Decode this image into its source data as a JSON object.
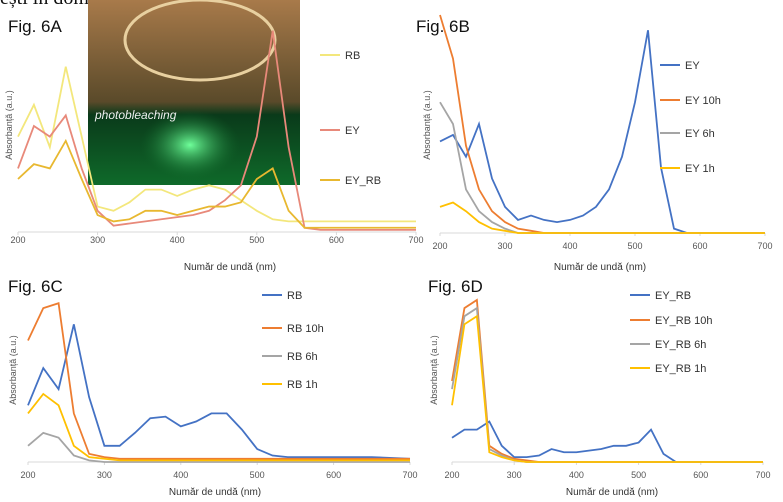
{
  "header": "ești în domeniul vizibil.",
  "chart_data": [
    {
      "type": "line",
      "title": "Fig. 6A",
      "annotation": "photobleaching",
      "x_label": "Număr de undă (nm)",
      "y_label": "Absorbanță (a.u.)",
      "x": [
        200,
        220,
        240,
        260,
        280,
        300,
        320,
        340,
        360,
        380,
        400,
        420,
        440,
        460,
        480,
        500,
        520,
        540,
        560,
        580,
        600,
        650,
        700
      ],
      "xlim": [
        200,
        700
      ],
      "xticks": [
        200,
        300,
        400,
        500,
        600,
        700
      ],
      "ylim": [
        0,
        1
      ],
      "series": [
        {
          "name": "RB",
          "color": "#f3e77c",
          "values": [
            0.45,
            0.6,
            0.4,
            0.78,
            0.45,
            0.12,
            0.1,
            0.14,
            0.2,
            0.2,
            0.17,
            0.2,
            0.22,
            0.2,
            0.15,
            0.1,
            0.06,
            0.05,
            0.05,
            0.05,
            0.05,
            0.05,
            0.05
          ]
        },
        {
          "name": "EY",
          "color": "#e8897a",
          "values": [
            0.3,
            0.5,
            0.45,
            0.55,
            0.3,
            0.1,
            0.03,
            0.04,
            0.05,
            0.06,
            0.07,
            0.08,
            0.1,
            0.15,
            0.22,
            0.45,
            0.95,
            0.4,
            0.02,
            0.01,
            0.01,
            0.01,
            0.01
          ]
        },
        {
          "name": "EY_RB",
          "color": "#e8b830",
          "values": [
            0.25,
            0.32,
            0.3,
            0.43,
            0.25,
            0.08,
            0.05,
            0.06,
            0.1,
            0.1,
            0.08,
            0.1,
            0.12,
            0.12,
            0.14,
            0.25,
            0.3,
            0.1,
            0.02,
            0.02,
            0.02,
            0.02,
            0.02
          ]
        }
      ]
    },
    {
      "type": "line",
      "title": "Fig. 6B",
      "x_label": "Număr de undă (nm)",
      "y_label": "Absorbanță (a.u.)",
      "x": [
        200,
        220,
        240,
        260,
        280,
        300,
        320,
        340,
        360,
        380,
        400,
        420,
        440,
        460,
        480,
        500,
        520,
        540,
        560,
        580,
        600,
        650,
        700
      ],
      "xlim": [
        200,
        700
      ],
      "xticks": [
        200,
        300,
        400,
        500,
        600,
        700
      ],
      "ylim": [
        0,
        1
      ],
      "series": [
        {
          "name": "EY",
          "color": "#4472c4",
          "values": [
            0.42,
            0.45,
            0.35,
            0.5,
            0.25,
            0.12,
            0.06,
            0.08,
            0.06,
            0.05,
            0.06,
            0.08,
            0.12,
            0.2,
            0.35,
            0.6,
            0.93,
            0.3,
            0.02,
            0,
            0,
            0,
            0
          ]
        },
        {
          "name": "EY 10h",
          "color": "#ed7d31",
          "values": [
            1,
            0.8,
            0.4,
            0.2,
            0.1,
            0.05,
            0.02,
            0.01,
            0,
            0,
            0,
            0,
            0,
            0,
            0,
            0,
            0,
            0,
            0,
            0,
            0,
            0,
            0
          ]
        },
        {
          "name": "EY 6h",
          "color": "#a5a5a5",
          "values": [
            0.6,
            0.5,
            0.2,
            0.1,
            0.05,
            0.02,
            0,
            0,
            0,
            0,
            0,
            0,
            0,
            0,
            0,
            0,
            0,
            0,
            0,
            0,
            0,
            0,
            0
          ]
        },
        {
          "name": "EY 1h",
          "color": "#ffc000",
          "values": [
            0.12,
            0.14,
            0.1,
            0.05,
            0.02,
            0.01,
            0,
            0,
            0,
            0,
            0,
            0,
            0,
            0,
            0,
            0,
            0,
            0,
            0,
            0,
            0,
            0,
            0
          ]
        }
      ]
    },
    {
      "type": "line",
      "title": "Fig. 6C",
      "x_label": "Număr de undă (nm)",
      "y_label": "Absorbanță (a.u.)",
      "x": [
        200,
        220,
        240,
        260,
        280,
        300,
        320,
        340,
        360,
        380,
        400,
        420,
        440,
        460,
        480,
        500,
        520,
        540,
        560,
        580,
        600,
        650,
        700
      ],
      "xlim": [
        200,
        700
      ],
      "xticks": [
        200,
        300,
        400,
        500,
        600,
        700
      ],
      "ylim": [
        0,
        1
      ],
      "series": [
        {
          "name": "RB",
          "color": "#4472c4",
          "values": [
            0.35,
            0.58,
            0.45,
            0.85,
            0.4,
            0.1,
            0.1,
            0.18,
            0.27,
            0.28,
            0.22,
            0.25,
            0.3,
            0.3,
            0.2,
            0.08,
            0.04,
            0.03,
            0.03,
            0.03,
            0.03,
            0.03,
            0.02
          ]
        },
        {
          "name": "RB 10h",
          "color": "#ed7d31",
          "values": [
            0.75,
            0.95,
            0.98,
            0.3,
            0.05,
            0.03,
            0.02,
            0.02,
            0.02,
            0.02,
            0.02,
            0.02,
            0.02,
            0.02,
            0.02,
            0.02,
            0.02,
            0.02,
            0.02,
            0.02,
            0.02,
            0.02,
            0.02
          ]
        },
        {
          "name": "RB 6h",
          "color": "#a5a5a5",
          "values": [
            0.1,
            0.18,
            0.15,
            0.04,
            0.01,
            0,
            0,
            0,
            0,
            0,
            0,
            0,
            0,
            0,
            0,
            0,
            0,
            0,
            0,
            0,
            0,
            0,
            0
          ]
        },
        {
          "name": "RB 1h",
          "color": "#ffc000",
          "values": [
            0.3,
            0.42,
            0.35,
            0.1,
            0.03,
            0.02,
            0.01,
            0.01,
            0.01,
            0.01,
            0.01,
            0.01,
            0.01,
            0.01,
            0.01,
            0.01,
            0.01,
            0.01,
            0.01,
            0.01,
            0.01,
            0.01,
            0.01
          ]
        }
      ]
    },
    {
      "type": "line",
      "title": "Fig. 6D",
      "x_label": "Număr de undă (nm)",
      "y_label": "Absorbanță (a.u.)",
      "x": [
        200,
        220,
        240,
        260,
        280,
        300,
        320,
        340,
        360,
        380,
        400,
        420,
        440,
        460,
        480,
        500,
        520,
        540,
        560,
        580,
        600,
        650,
        700
      ],
      "xlim": [
        200,
        700
      ],
      "xticks": [
        200,
        300,
        400,
        500,
        600,
        700
      ],
      "ylim": [
        0,
        1
      ],
      "series": [
        {
          "name": "EY_RB",
          "color": "#4472c4",
          "values": [
            0.15,
            0.2,
            0.2,
            0.25,
            0.1,
            0.03,
            0.03,
            0.04,
            0.08,
            0.06,
            0.06,
            0.07,
            0.08,
            0.1,
            0.1,
            0.12,
            0.2,
            0.05,
            0,
            0,
            0,
            0,
            0
          ]
        },
        {
          "name": "EY_RB 10h",
          "color": "#ed7d31",
          "values": [
            0.5,
            0.95,
            1,
            0.1,
            0.05,
            0.02,
            0.01,
            0,
            0,
            0,
            0,
            0,
            0,
            0,
            0,
            0,
            0,
            0,
            0,
            0,
            0,
            0,
            0
          ]
        },
        {
          "name": "EY_RB 6h",
          "color": "#a5a5a5",
          "values": [
            0.45,
            0.9,
            0.95,
            0.08,
            0.04,
            0.01,
            0,
            0,
            0,
            0,
            0,
            0,
            0,
            0,
            0,
            0,
            0,
            0,
            0,
            0,
            0,
            0,
            0
          ]
        },
        {
          "name": "EY_RB 1h",
          "color": "#ffc000",
          "values": [
            0.35,
            0.85,
            0.9,
            0.06,
            0.03,
            0.01,
            0,
            0,
            0,
            0,
            0,
            0,
            0,
            0,
            0,
            0,
            0,
            0,
            0,
            0,
            0,
            0,
            0
          ]
        }
      ]
    }
  ]
}
